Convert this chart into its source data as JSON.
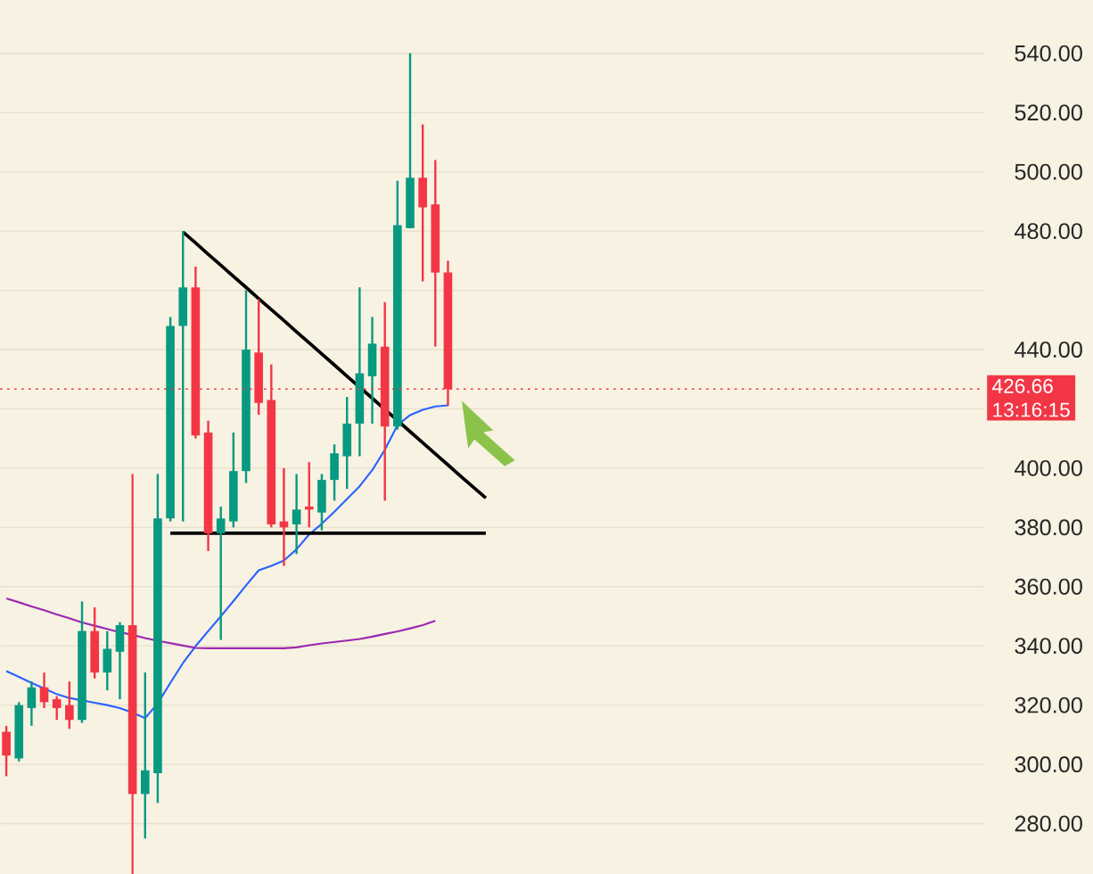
{
  "chart_data": {
    "type": "candlestick",
    "categories": [
      null,
      null,
      null,
      null,
      null,
      null,
      null,
      null,
      null,
      null,
      null,
      null,
      null,
      null,
      null,
      null,
      null,
      null,
      null,
      null,
      null,
      null,
      null,
      null,
      null,
      null,
      null,
      null,
      null,
      null,
      null,
      null,
      null,
      null,
      null,
      null,
      null,
      null,
      null,
      null,
      null,
      null,
      null,
      null,
      null,
      null,
      null,
      null,
      null,
      null,
      null,
      null,
      null,
      null,
      null,
      null,
      null,
      null,
      null,
      null,
      null,
      null,
      null,
      null,
      null,
      null,
      null,
      null,
      null,
      null,
      null,
      null,
      null,
      null,
      null,
      null,
      null,
      null
    ],
    "ohlc": [
      [
        311,
        313,
        296,
        303
      ],
      [
        302,
        321,
        301,
        320
      ],
      [
        319,
        328,
        313,
        326
      ],
      [
        326,
        331,
        319,
        321
      ],
      [
        322,
        323,
        315,
        319
      ],
      [
        320,
        328,
        312,
        315
      ],
      [
        315,
        355,
        314,
        345
      ],
      [
        345,
        353,
        329,
        331
      ],
      [
        331,
        345,
        325,
        339
      ],
      [
        338,
        348,
        322,
        347
      ],
      [
        347,
        398,
        263,
        290
      ],
      [
        290,
        331,
        275,
        298
      ],
      [
        297,
        398,
        287,
        383
      ],
      [
        383,
        451,
        382,
        448
      ],
      [
        448,
        480,
        382,
        461
      ],
      [
        461,
        468,
        410,
        411
      ],
      [
        412,
        416,
        372,
        378
      ],
      [
        378,
        387,
        342,
        383
      ],
      [
        382,
        412,
        380,
        399
      ],
      [
        399,
        460,
        395,
        440
      ],
      [
        439,
        457,
        418,
        422
      ],
      [
        423,
        435,
        380,
        381
      ],
      [
        382,
        400,
        367,
        380
      ],
      [
        381,
        398,
        371,
        386
      ],
      [
        387,
        402,
        380,
        386
      ],
      [
        385,
        398,
        379,
        396
      ],
      [
        396,
        408,
        389,
        405
      ],
      [
        404,
        424,
        393,
        415
      ],
      [
        415,
        461,
        404,
        432
      ],
      [
        431,
        451,
        415,
        442
      ],
      [
        441,
        456,
        389,
        414
      ],
      [
        414,
        497,
        413,
        482
      ],
      [
        481,
        540,
        481,
        498
      ],
      [
        498,
        516,
        463,
        488
      ],
      [
        489,
        504,
        441,
        466
      ],
      [
        466,
        470,
        421,
        426.66
      ],
      null,
      null,
      null,
      null,
      null,
      null,
      null,
      null,
      null,
      null,
      null,
      null,
      null,
      null,
      null,
      null,
      null,
      null,
      null,
      null,
      null,
      null,
      null,
      null,
      null,
      null,
      null,
      null,
      null,
      null,
      null,
      null,
      null,
      null,
      null,
      null,
      null,
      null,
      null,
      null,
      null,
      null
    ],
    "colors": [
      "#f23645",
      "#089981",
      "#089981",
      "#f23645",
      "#f23645",
      "#f23645",
      "#089981",
      "#f23645",
      "#089981",
      "#089981",
      "#f23645",
      "#089981",
      "#089981",
      "#089981",
      "#089981",
      "#f23645",
      "#f23645",
      "#089981",
      "#089981",
      "#089981",
      "#f23645",
      "#f23645",
      "#f23645",
      "#089981",
      "#f23645",
      "#089981",
      "#089981",
      "#089981",
      "#089981",
      "#089981",
      "#f23645",
      "#089981",
      "#089981",
      "#f23645",
      "#f23645",
      "#f23645",
      null,
      null,
      null,
      null,
      null,
      null,
      null,
      null,
      null,
      null,
      null,
      null,
      null,
      null,
      null,
      null,
      null,
      null,
      null,
      null,
      null,
      null,
      null,
      null,
      null,
      null,
      null,
      null,
      null,
      null,
      null,
      null,
      null,
      null,
      null,
      null,
      null,
      null,
      null,
      null,
      null,
      null
    ],
    "series": [
      {
        "type": "line",
        "color": "#2962ff",
        "values": [
          331.5,
          329.5,
          327.5,
          325.6,
          323.7,
          322.4,
          321.6,
          320.8,
          320.0,
          319.0,
          317.5,
          315.6,
          320.6,
          327.5,
          334.2,
          339.9,
          345.0,
          350.0,
          355.1,
          360.4,
          365.5,
          367.0,
          368.8,
          372.6,
          377.6,
          381.2,
          385.3,
          389.6,
          393.9,
          399.3,
          406.2,
          414.5,
          417.9,
          419.7,
          420.8,
          421.2,
          null,
          null,
          null,
          null,
          null,
          null,
          null,
          null,
          null,
          null,
          null,
          null,
          null,
          null,
          null,
          null,
          null,
          null,
          null,
          null,
          null,
          null,
          null,
          null,
          null,
          null,
          null,
          null,
          null,
          null,
          null,
          null,
          null,
          null,
          null,
          null,
          null,
          null,
          null,
          null,
          null,
          null
        ]
      },
      {
        "type": "line",
        "color": "#9c27b0",
        "values": [
          356.0,
          354.7,
          353.3,
          352.0,
          350.6,
          349.3,
          347.9,
          346.8,
          345.7,
          344.6,
          343.7,
          342.6,
          341.7,
          340.9,
          340.1,
          339.3,
          339.2,
          339.2,
          339.2,
          339.2,
          339.2,
          339.2,
          339.2,
          339.5,
          340.2,
          340.8,
          341.3,
          341.8,
          342.3,
          343.1,
          344.0,
          344.9,
          345.9,
          347.0,
          348.5,
          null,
          null,
          null,
          null,
          null,
          null,
          null,
          null,
          null,
          null,
          null,
          null,
          null,
          null,
          null,
          null,
          null,
          null,
          null,
          null,
          null,
          null,
          null,
          null,
          null,
          null,
          null,
          null,
          null,
          null,
          null,
          null,
          null,
          null,
          null,
          null,
          null,
          null,
          null,
          null,
          null,
          null,
          null
        ]
      },
      {
        "type": "line",
        "color": "#000000",
        "values": [
          null,
          null,
          null,
          null,
          null,
          null,
          null,
          null,
          null,
          null,
          null,
          null,
          null,
          null,
          479.7,
          476.0,
          472.2,
          468.5,
          464.7,
          461.0,
          457.2,
          453.5,
          449.8,
          446.0,
          442.3,
          438.5,
          434.8,
          431.0,
          427.3,
          423.6,
          419.8,
          416.1,
          412.3,
          408.6,
          404.8,
          401.1,
          397.3,
          393.6,
          389.9,
          null,
          null,
          null,
          null,
          null,
          null,
          null,
          null,
          null,
          null,
          null,
          null,
          null,
          null,
          null,
          null,
          null,
          null,
          null,
          null,
          null,
          null,
          null,
          null,
          null,
          null,
          null,
          null,
          null,
          null,
          null,
          null,
          null,
          null,
          null,
          null,
          null,
          null,
          null
        ]
      },
      {
        "type": "line",
        "color": "#000000",
        "values": [
          null,
          null,
          null,
          null,
          null,
          null,
          null,
          null,
          null,
          null,
          null,
          null,
          null,
          378,
          378,
          378,
          378,
          378,
          378,
          378,
          378,
          378,
          378,
          378,
          378,
          378,
          378,
          378,
          378,
          378,
          378,
          378,
          378,
          378,
          378,
          378,
          378,
          378,
          378,
          null,
          null,
          null,
          null,
          null,
          null,
          null,
          null,
          null,
          null,
          null,
          null,
          null,
          null,
          null,
          null,
          null,
          null,
          null,
          null,
          null,
          null,
          null,
          null,
          null,
          null,
          null,
          null,
          null,
          null,
          null,
          null,
          null,
          null,
          null,
          null,
          null,
          null,
          null
        ]
      }
    ],
    "ylim": [
      263,
      558
    ],
    "yticks": [
      {
        "value": 280,
        "label": "280.00"
      },
      {
        "value": 300,
        "label": "300.00"
      },
      {
        "value": 320,
        "label": "320.00"
      },
      {
        "value": 340,
        "label": "340.00"
      },
      {
        "value": 360,
        "label": "360.00"
      },
      {
        "value": 380,
        "label": "380.00"
      },
      {
        "value": 400,
        "label": "400.00"
      },
      {
        "value": 420,
        "label": null
      },
      {
        "value": 440,
        "label": "440.00"
      },
      {
        "value": 460,
        "label": null
      },
      {
        "value": 480,
        "label": "480.00"
      },
      {
        "value": 500,
        "label": "500.00"
      },
      {
        "value": 520,
        "label": "520.00"
      },
      {
        "value": 540,
        "label": "540.00"
      }
    ],
    "grid": "y",
    "ref_lines": [
      {
        "axis": "y",
        "value": 426.66,
        "label": "426.66",
        "color": "#f23645",
        "line_style": "dotted"
      }
    ],
    "annotations": [
      "13:16:15"
    ]
  }
}
